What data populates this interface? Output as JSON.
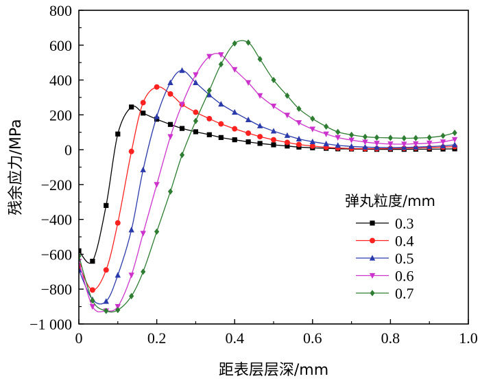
{
  "chart_data": {
    "type": "line",
    "title": "",
    "xlabel": "距表层层深/mm",
    "ylabel": "残余应力/MPa",
    "xlim": [
      0,
      1.0
    ],
    "ylim": [
      -1000,
      800
    ],
    "xticks": [
      0,
      0.2,
      0.4,
      0.6,
      0.8,
      1.0
    ],
    "xtick_labels": [
      "0",
      "0.2",
      "0.4",
      "0.6",
      "0.8",
      "1.0"
    ],
    "yticks": [
      -1000,
      -800,
      -600,
      -400,
      -200,
      0,
      200,
      400,
      600,
      800
    ],
    "ytick_labels": [
      "−1 000",
      "−800",
      "−600",
      "−400",
      "−200",
      "0",
      "200",
      "400",
      "600",
      "800"
    ],
    "legend_title": "弹丸粒度/mm",
    "legend_position": "right",
    "series": [
      {
        "name": "0.3",
        "color": "#000000",
        "marker": "square",
        "points": [
          [
            0,
            -580
          ],
          [
            0.035,
            -640
          ],
          [
            0.07,
            -320
          ],
          [
            0.1,
            90
          ],
          [
            0.135,
            245
          ],
          [
            0.165,
            210
          ],
          [
            0.2,
            175
          ],
          [
            0.235,
            145
          ],
          [
            0.265,
            122
          ],
          [
            0.3,
            103
          ],
          [
            0.335,
            86
          ],
          [
            0.365,
            70
          ],
          [
            0.4,
            57
          ],
          [
            0.435,
            45
          ],
          [
            0.465,
            36
          ],
          [
            0.5,
            28
          ],
          [
            0.535,
            21
          ],
          [
            0.565,
            15
          ],
          [
            0.6,
            11
          ],
          [
            0.635,
            8
          ],
          [
            0.665,
            5
          ],
          [
            0.7,
            4
          ],
          [
            0.735,
            3
          ],
          [
            0.765,
            2
          ],
          [
            0.8,
            2
          ],
          [
            0.835,
            2
          ],
          [
            0.865,
            3
          ],
          [
            0.9,
            3
          ],
          [
            0.935,
            4
          ],
          [
            0.965,
            5
          ]
        ]
      },
      {
        "name": "0.4",
        "color": "#ff2020",
        "marker": "circle",
        "points": [
          [
            0,
            -665
          ],
          [
            0.035,
            -805
          ],
          [
            0.07,
            -690
          ],
          [
            0.1,
            -420
          ],
          [
            0.135,
            -10
          ],
          [
            0.165,
            270
          ],
          [
            0.2,
            360
          ],
          [
            0.235,
            320
          ],
          [
            0.265,
            260
          ],
          [
            0.3,
            215
          ],
          [
            0.335,
            178
          ],
          [
            0.365,
            148
          ],
          [
            0.4,
            120
          ],
          [
            0.435,
            95
          ],
          [
            0.465,
            75
          ],
          [
            0.5,
            57
          ],
          [
            0.535,
            42
          ],
          [
            0.565,
            30
          ],
          [
            0.6,
            21
          ],
          [
            0.635,
            14
          ],
          [
            0.665,
            10
          ],
          [
            0.7,
            7
          ],
          [
            0.735,
            6
          ],
          [
            0.765,
            6
          ],
          [
            0.8,
            7
          ],
          [
            0.835,
            8
          ],
          [
            0.865,
            10
          ],
          [
            0.9,
            12
          ],
          [
            0.935,
            15
          ],
          [
            0.965,
            18
          ]
        ]
      },
      {
        "name": "0.5",
        "color": "#2a3aaa",
        "marker": "triangle-up",
        "points": [
          [
            0,
            -690
          ],
          [
            0.035,
            -860
          ],
          [
            0.07,
            -870
          ],
          [
            0.1,
            -720
          ],
          [
            0.135,
            -460
          ],
          [
            0.165,
            -115
          ],
          [
            0.2,
            190
          ],
          [
            0.235,
            385
          ],
          [
            0.265,
            455
          ],
          [
            0.3,
            385
          ],
          [
            0.335,
            315
          ],
          [
            0.365,
            262
          ],
          [
            0.4,
            215
          ],
          [
            0.435,
            172
          ],
          [
            0.465,
            137
          ],
          [
            0.5,
            107
          ],
          [
            0.535,
            82
          ],
          [
            0.565,
            62
          ],
          [
            0.6,
            46
          ],
          [
            0.635,
            34
          ],
          [
            0.665,
            25
          ],
          [
            0.7,
            19
          ],
          [
            0.735,
            15
          ],
          [
            0.765,
            13
          ],
          [
            0.8,
            12
          ],
          [
            0.835,
            13
          ],
          [
            0.865,
            15
          ],
          [
            0.9,
            18
          ],
          [
            0.935,
            22
          ],
          [
            0.965,
            28
          ]
        ]
      },
      {
        "name": "0.6",
        "color": "#cc33cc",
        "marker": "triangle-down",
        "points": [
          [
            0,
            -640
          ],
          [
            0.035,
            -900
          ],
          [
            0.07,
            -925
          ],
          [
            0.1,
            -900
          ],
          [
            0.135,
            -720
          ],
          [
            0.165,
            -480
          ],
          [
            0.2,
            -200
          ],
          [
            0.235,
            75
          ],
          [
            0.265,
            260
          ],
          [
            0.3,
            430
          ],
          [
            0.335,
            535
          ],
          [
            0.365,
            545
          ],
          [
            0.4,
            460
          ],
          [
            0.435,
            385
          ],
          [
            0.465,
            310
          ],
          [
            0.5,
            250
          ],
          [
            0.535,
            198
          ],
          [
            0.565,
            155
          ],
          [
            0.6,
            118
          ],
          [
            0.635,
            90
          ],
          [
            0.665,
            70
          ],
          [
            0.7,
            55
          ],
          [
            0.735,
            44
          ],
          [
            0.765,
            37
          ],
          [
            0.8,
            33
          ],
          [
            0.835,
            32
          ],
          [
            0.865,
            34
          ],
          [
            0.9,
            38
          ],
          [
            0.935,
            45
          ],
          [
            0.965,
            58
          ]
        ]
      },
      {
        "name": "0.7",
        "color": "#2e7d32",
        "marker": "diamond",
        "points": [
          [
            0,
            -610
          ],
          [
            0.035,
            -865
          ],
          [
            0.07,
            -925
          ],
          [
            0.1,
            -920
          ],
          [
            0.135,
            -840
          ],
          [
            0.165,
            -700
          ],
          [
            0.2,
            -470
          ],
          [
            0.235,
            -240
          ],
          [
            0.265,
            -30
          ],
          [
            0.3,
            165
          ],
          [
            0.335,
            340
          ],
          [
            0.365,
            490
          ],
          [
            0.4,
            610
          ],
          [
            0.435,
            615
          ],
          [
            0.465,
            520
          ],
          [
            0.5,
            400
          ],
          [
            0.535,
            310
          ],
          [
            0.565,
            235
          ],
          [
            0.6,
            178
          ],
          [
            0.635,
            133
          ],
          [
            0.665,
            102
          ],
          [
            0.7,
            85
          ],
          [
            0.735,
            74
          ],
          [
            0.765,
            70
          ],
          [
            0.8,
            68
          ],
          [
            0.835,
            66
          ],
          [
            0.865,
            67
          ],
          [
            0.9,
            70
          ],
          [
            0.935,
            80
          ],
          [
            0.965,
            97
          ]
        ]
      }
    ]
  }
}
